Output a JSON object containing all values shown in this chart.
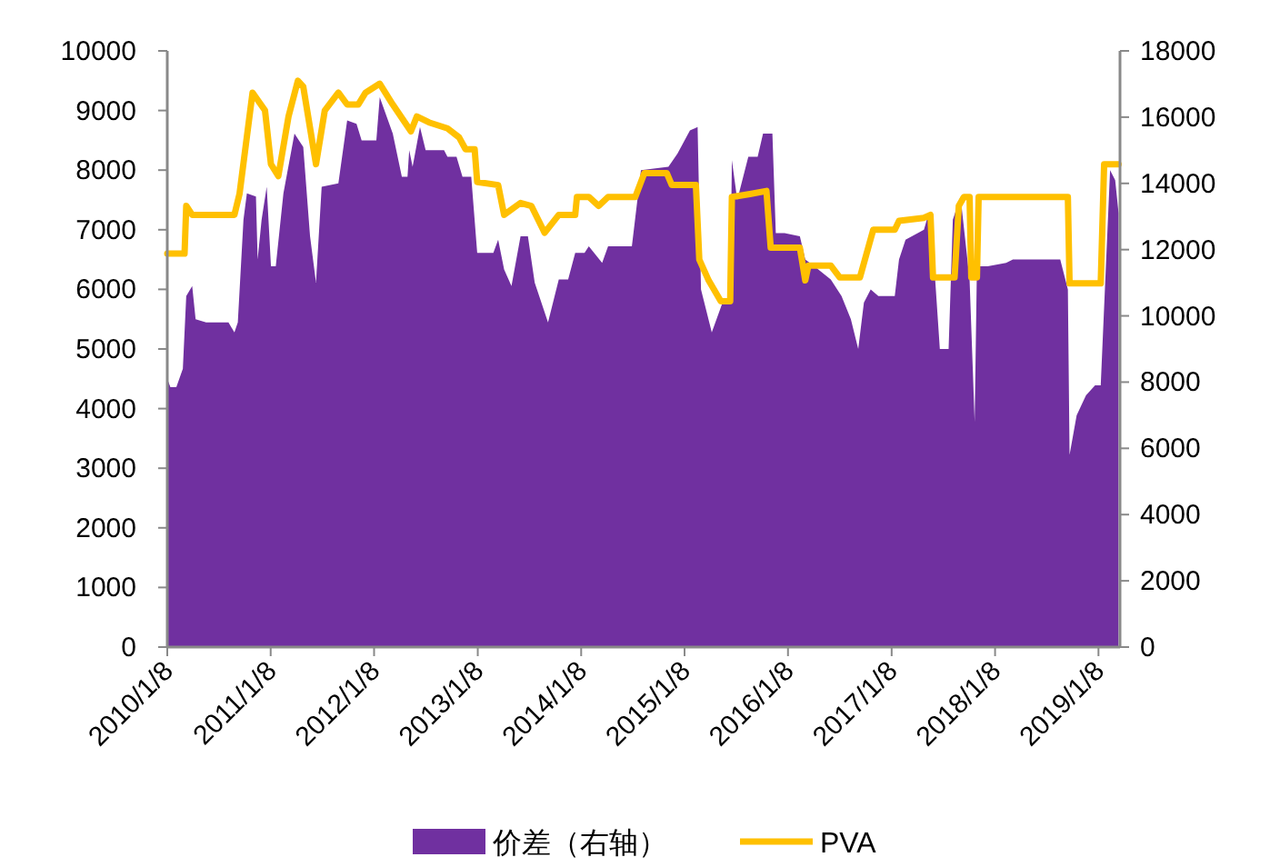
{
  "chart_data": {
    "type": "area",
    "legend": "bottom",
    "xlim": [
      "2010-01-08",
      "2019-03-25"
    ],
    "xticks": [
      {
        "value": "2010-01-08",
        "label": "2010/1/8"
      },
      {
        "value": "2011-01-08",
        "label": "2011/1/8"
      },
      {
        "value": "2012-01-08",
        "label": "2012/1/8"
      },
      {
        "value": "2013-01-08",
        "label": "2013/1/8"
      },
      {
        "value": "2014-01-08",
        "label": "2014/1/8"
      },
      {
        "value": "2015-01-08",
        "label": "2015/1/8"
      },
      {
        "value": "2016-01-08",
        "label": "2016/1/8"
      },
      {
        "value": "2017-01-08",
        "label": "2017/1/8"
      },
      {
        "value": "2018-01-08",
        "label": "2018/1/8"
      },
      {
        "value": "2019-01-08",
        "label": "2019/1/8"
      }
    ],
    "ylim": [
      0,
      10000
    ],
    "yticks": [
      0,
      1000,
      2000,
      3000,
      4000,
      5000,
      6000,
      7000,
      8000,
      9000,
      10000
    ],
    "y2lim": [
      0,
      18000
    ],
    "y2ticks": [
      0,
      2000,
      4000,
      6000,
      8000,
      10000,
      12000,
      14000,
      16000,
      18000
    ],
    "series": [
      {
        "name": "价差（右轴）",
        "axis": "y2",
        "color": "#7030a0",
        "x": [
          "2010-01-08",
          "2010-01-19",
          "2010-02-09",
          "2010-03-04",
          "2010-03-16",
          "2010-04-06",
          "2010-04-18",
          "2010-05-25",
          "2010-06-15",
          "2010-08-12",
          "2010-09-02",
          "2010-09-14",
          "2010-10-04",
          "2010-10-16",
          "2010-11-17",
          "2010-11-23",
          "2010-12-07",
          "2010-12-25",
          "2011-01-09",
          "2011-01-26",
          "2011-02-22",
          "2011-04-02",
          "2011-05-03",
          "2011-05-27",
          "2011-06-17",
          "2011-07-07",
          "2011-09-04",
          "2011-10-05",
          "2011-11-07",
          "2011-11-25",
          "2012-01-16",
          "2012-01-28",
          "2012-03-14",
          "2012-04-15",
          "2012-05-05",
          "2012-05-11",
          "2012-05-23",
          "2012-06-18",
          "2012-07-08",
          "2012-09-11",
          "2012-09-23",
          "2012-10-25",
          "2012-11-15",
          "2012-12-16",
          "2013-01-06",
          "2013-03-04",
          "2013-03-21",
          "2013-04-11",
          "2013-05-07",
          "2013-06-08",
          "2013-07-04",
          "2013-07-28",
          "2013-09-13",
          "2013-10-21",
          "2013-11-23",
          "2013-12-18",
          "2014-01-20",
          "2014-02-04",
          "2014-03-23",
          "2014-04-13",
          "2014-07-06",
          "2014-08-07",
          "2014-11-12",
          "2014-12-14",
          "2015-01-27",
          "2015-02-23",
          "2015-03-07",
          "2015-04-14",
          "2015-05-22",
          "2015-06-18",
          "2015-06-24",
          "2015-07-13",
          "2015-08-21",
          "2015-09-23",
          "2015-10-12",
          "2015-11-14",
          "2015-11-26",
          "2015-12-27",
          "2016-02-19",
          "2016-03-09",
          "2016-04-10",
          "2016-06-07",
          "2016-07-15",
          "2016-08-17",
          "2016-09-12",
          "2016-10-02",
          "2016-10-26",
          "2016-11-22",
          "2017-01-19",
          "2017-02-03",
          "2017-02-26",
          "2017-05-02",
          "2017-05-19",
          "2017-06-09",
          "2017-06-27",
          "2017-07-28",
          "2017-08-12",
          "2017-09-08",
          "2017-10-10",
          "2017-10-28",
          "2017-11-05",
          "2017-12-13",
          "2018-02-16",
          "2018-03-12",
          "2018-08-26",
          "2018-09-22",
          "2018-09-28",
          "2018-10-23",
          "2018-11-25",
          "2018-12-27",
          "2019-01-16",
          "2019-02-18",
          "2019-03-08",
          "2019-03-20"
        ],
        "values": [
          8100,
          7850,
          7850,
          8400,
          10600,
          10900,
          9900,
          9800,
          9800,
          9800,
          9500,
          9800,
          12900,
          13700,
          13600,
          11700,
          12900,
          13900,
          11500,
          11500,
          13700,
          15500,
          15100,
          12400,
          11000,
          13900,
          14000,
          15900,
          15800,
          15300,
          15300,
          16600,
          15500,
          14200,
          14200,
          15000,
          14500,
          15700,
          15000,
          15000,
          14800,
          14800,
          14200,
          14200,
          11900,
          11900,
          12300,
          11400,
          10900,
          12400,
          12400,
          11000,
          9800,
          11100,
          11100,
          11900,
          11900,
          12100,
          11600,
          12100,
          12100,
          14400,
          14500,
          14900,
          15600,
          15700,
          10800,
          9500,
          10400,
          10400,
          14700,
          13500,
          14800,
          14800,
          15500,
          15500,
          12500,
          12500,
          12400,
          11700,
          11500,
          11100,
          10600,
          9900,
          9000,
          10400,
          10800,
          10600,
          10600,
          11700,
          12300,
          12600,
          13100,
          11300,
          9000,
          9000,
          12900,
          13600,
          11100,
          6800,
          11500,
          11500,
          11600,
          11700,
          11700,
          10800,
          5800,
          7000,
          7600,
          7900,
          7900,
          14400,
          14100,
          13100
        ]
      },
      {
        "name": "PVA",
        "type": "line",
        "color": "#ffc000",
        "x": [
          "2010-01-08",
          "2010-03-10",
          "2010-03-16",
          "2010-04-06",
          "2010-09-02",
          "2010-09-20",
          "2010-11-05",
          "2010-12-19",
          "2011-01-09",
          "2011-02-04",
          "2011-03-12",
          "2011-04-14",
          "2011-05-03",
          "2011-06-17",
          "2011-07-18",
          "2011-09-04",
          "2011-10-05",
          "2011-11-13",
          "2011-12-09",
          "2012-01-28",
          "2012-03-14",
          "2012-05-17",
          "2012-06-07",
          "2012-07-20",
          "2012-09-23",
          "2012-11-03",
          "2012-11-26",
          "2012-12-28",
          "2013-01-06",
          "2013-03-21",
          "2013-04-11",
          "2013-06-08",
          "2013-07-16",
          "2013-09-01",
          "2013-10-21",
          "2013-12-18",
          "2013-12-24",
          "2014-02-04",
          "2014-03-11",
          "2014-04-13",
          "2014-07-18",
          "2014-08-19",
          "2014-11-06",
          "2014-11-24",
          "2015-02-17",
          "2015-03-01",
          "2015-04-03",
          "2015-05-16",
          "2015-06-18",
          "2015-06-24",
          "2015-08-27",
          "2015-10-24",
          "2015-11-08",
          "2016-02-19",
          "2016-03-09",
          "2016-03-20",
          "2016-06-07",
          "2016-07-09",
          "2016-09-18",
          "2016-11-04",
          "2017-01-19",
          "2017-02-03",
          "2017-05-02",
          "2017-05-25",
          "2017-06-03",
          "2017-08-18",
          "2017-09-02",
          "2017-09-20",
          "2017-10-10",
          "2017-10-16",
          "2017-11-05",
          "2017-11-11",
          "2018-09-22",
          "2018-09-28",
          "2019-01-16",
          "2019-01-28",
          "2019-03-20"
        ],
        "values": [
          6600,
          6600,
          7400,
          7250,
          7250,
          7600,
          9300,
          9000,
          8100,
          7900,
          8900,
          9500,
          9400,
          8100,
          9000,
          9300,
          9100,
          9100,
          9300,
          9450,
          9100,
          8650,
          8900,
          8800,
          8700,
          8550,
          8350,
          8350,
          7800,
          7750,
          7250,
          7450,
          7400,
          6950,
          7250,
          7250,
          7550,
          7550,
          7400,
          7550,
          7550,
          7950,
          7950,
          7750,
          7750,
          6500,
          6150,
          5800,
          5800,
          7550,
          7600,
          7650,
          6700,
          6700,
          6150,
          6400,
          6400,
          6200,
          6200,
          7000,
          7000,
          7150,
          7200,
          7250,
          6200,
          6200,
          7400,
          7550,
          7550,
          6200,
          6200,
          7550,
          7550,
          6100,
          6100,
          8100,
          8100
        ]
      }
    ]
  }
}
